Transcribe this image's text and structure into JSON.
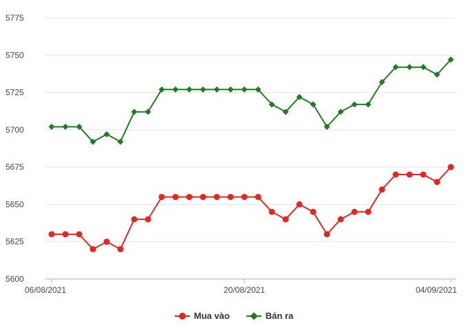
{
  "chart_data": {
    "type": "line",
    "title": "",
    "xlabel": "",
    "ylabel": "",
    "ylim": [
      5600,
      5775
    ],
    "yticks": [
      5600,
      5625,
      5650,
      5675,
      5700,
      5725,
      5750,
      5775
    ],
    "x_tick_labels": [
      {
        "index": 0,
        "label": "06/08/2021"
      },
      {
        "index": 14,
        "label": "20/08/2021"
      },
      {
        "index": 29,
        "label": "04/09/2021"
      }
    ],
    "grid": true,
    "legend_position": "bottom-center",
    "x": [
      "06/08/2021",
      "07/08/2021",
      "08/08/2021",
      "09/08/2021",
      "10/08/2021",
      "11/08/2021",
      "12/08/2021",
      "13/08/2021",
      "14/08/2021",
      "15/08/2021",
      "16/08/2021",
      "17/08/2021",
      "18/08/2021",
      "19/08/2021",
      "20/08/2021",
      "21/08/2021",
      "22/08/2021",
      "23/08/2021",
      "24/08/2021",
      "25/08/2021",
      "26/08/2021",
      "27/08/2021",
      "28/08/2021",
      "29/08/2021",
      "30/08/2021",
      "31/08/2021",
      "01/09/2021",
      "02/09/2021",
      "03/09/2021",
      "04/09/2021"
    ],
    "series": [
      {
        "name": "Mua vào",
        "color": "#e8251f",
        "marker": "circle",
        "values": [
          5630,
          5630,
          5630,
          5620,
          5625,
          5620,
          5640,
          5640,
          5655,
          5655,
          5655,
          5655,
          5655,
          5655,
          5655,
          5655,
          5645,
          5640,
          5650,
          5645,
          5630,
          5640,
          5645,
          5645,
          5660,
          5670,
          5670,
          5670,
          5665,
          5675
        ]
      },
      {
        "name": "Bán ra",
        "color": "#1e7d1e",
        "marker": "diamond",
        "values": [
          5702,
          5702,
          5702,
          5692,
          5697,
          5692,
          5712,
          5712,
          5727,
          5727,
          5727,
          5727,
          5727,
          5727,
          5727,
          5727,
          5717,
          5712,
          5722,
          5717,
          5702,
          5712,
          5717,
          5717,
          5732,
          5742,
          5742,
          5742,
          5737,
          5747
        ]
      }
    ]
  }
}
